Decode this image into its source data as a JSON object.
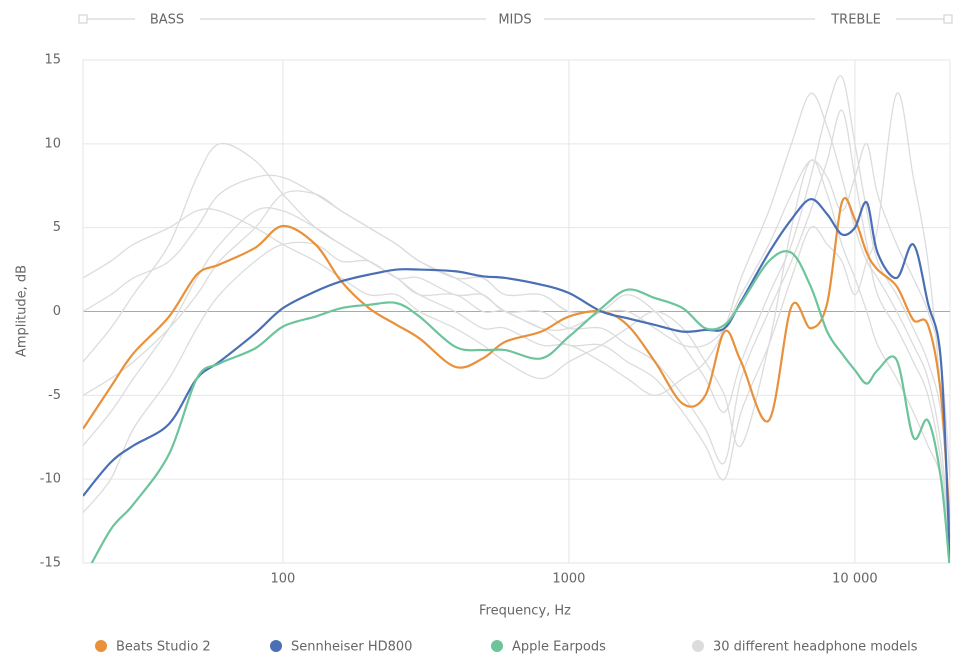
{
  "chart_data": {
    "type": "line",
    "bands": [
      "BASS",
      "MIDS",
      "TREBLE"
    ],
    "xlabel": "Frequency, Hz",
    "ylabel": "Amplitude, dB",
    "xscale": "log",
    "grid": true,
    "xlim": [
      20,
      21500
    ],
    "xticks": [
      100,
      1000,
      {
        "value": 10000,
        "label": "10 000"
      }
    ],
    "ylim": [
      -15,
      15
    ],
    "yticks": [
      -15,
      -10,
      -5,
      0,
      5,
      10,
      15
    ],
    "x": [
      20,
      25,
      30,
      40,
      50,
      60,
      80,
      100,
      130,
      160,
      200,
      250,
      300,
      400,
      500,
      600,
      800,
      1000,
      1300,
      1600,
      2000,
      2500,
      3000,
      3500,
      4000,
      5000,
      6000,
      7000,
      8000,
      9000,
      10000,
      11000,
      12000,
      14000,
      16000,
      18000,
      20000,
      21500
    ],
    "background": {
      "name": "30 different headphone models",
      "color": "#dcdcdc",
      "lines": [
        [
          -3,
          -1,
          1,
          4,
          8,
          10,
          9,
          7,
          5,
          4,
          3,
          2,
          1,
          0,
          -1,
          -1,
          -2,
          -2,
          -3,
          -4,
          -5,
          -4,
          -3,
          -1,
          2,
          6,
          10,
          13,
          11,
          8,
          5,
          3,
          2,
          0,
          -2,
          -4,
          -8,
          -14
        ],
        [
          -8,
          -6,
          -4,
          -1,
          2,
          4,
          6,
          6,
          5,
          4,
          3,
          2,
          1,
          1,
          0,
          0,
          -1,
          -1,
          0,
          1,
          0,
          -2,
          -4,
          -6,
          -3,
          1,
          4,
          8,
          12,
          14,
          10,
          6,
          3,
          1,
          -1,
          -3,
          -6,
          -12
        ],
        [
          2,
          3,
          4,
          5,
          6,
          6,
          5,
          4,
          3,
          2,
          1,
          1,
          0,
          -1,
          -2,
          -3,
          -4,
          -3,
          -2,
          -1,
          0,
          -1,
          -3,
          -5,
          -8,
          -2,
          5,
          9,
          7,
          4,
          2,
          0,
          -2,
          -4,
          -6,
          -8,
          -10,
          -15
        ],
        [
          -12,
          -10,
          -7,
          -4,
          -1,
          1,
          3,
          4,
          4,
          3,
          3,
          2,
          2,
          1,
          1,
          0,
          0,
          -1,
          -1,
          -2,
          -3,
          -5,
          -7,
          -9,
          -4,
          0,
          3,
          6,
          9,
          12,
          8,
          4,
          1,
          -1,
          -3,
          -5,
          -9,
          -14
        ],
        [
          -5,
          -4,
          -3,
          -1,
          1,
          3,
          5,
          7,
          7,
          6,
          5,
          4,
          3,
          2,
          2,
          1,
          1,
          0,
          0,
          0,
          -1,
          -2,
          -2,
          -1,
          1,
          4,
          7,
          9,
          8,
          6,
          8,
          10,
          7,
          4,
          2,
          0,
          -3,
          -10
        ],
        [
          0,
          1,
          2,
          3,
          5,
          7,
          8,
          8,
          7,
          6,
          5,
          4,
          3,
          2,
          1,
          0,
          -1,
          -2,
          -2,
          -3,
          -4,
          -6,
          -8,
          -10,
          -6,
          -2,
          2,
          5,
          4,
          3,
          1,
          3,
          5,
          13,
          8,
          3,
          -5,
          -13
        ]
      ]
    },
    "series": [
      {
        "name": "Beats Studio 2",
        "color": "#e8913a",
        "values": [
          -7,
          -4.5,
          -2.5,
          -0.3,
          2.2,
          2.8,
          3.8,
          5.1,
          4,
          1.8,
          0.2,
          -0.8,
          -1.6,
          -3.3,
          -2.8,
          -1.8,
          -1.2,
          -0.3,
          0,
          -0.8,
          -3,
          -5.5,
          -5,
          -1.2,
          -3,
          -6.5,
          0.3,
          -1,
          0.5,
          6.5,
          5.5,
          3.5,
          2.5,
          1.5,
          -0.5,
          -0.8,
          -5,
          -13
        ]
      },
      {
        "name": "Sennheiser HD800",
        "color": "#4a6fb5",
        "values": [
          -11,
          -9,
          -8,
          -6.7,
          -4,
          -3,
          -1.3,
          0.2,
          1.2,
          1.8,
          2.2,
          2.5,
          2.5,
          2.4,
          2.1,
          2,
          1.6,
          1.1,
          0,
          -0.4,
          -0.8,
          -1.2,
          -1.1,
          -1,
          0.6,
          3.5,
          5.5,
          6.7,
          5.8,
          4.6,
          5,
          6.5,
          3.5,
          2,
          4,
          0.5,
          -3,
          -15
        ]
      },
      {
        "name": "Apple Earpods",
        "color": "#6cc49b",
        "values": [
          -16,
          -13,
          -11.5,
          -8.5,
          -4,
          -3.1,
          -2.2,
          -0.9,
          -0.3,
          0.2,
          0.4,
          0.5,
          -0.3,
          -2.1,
          -2.3,
          -2.3,
          -2.8,
          -1.5,
          0.2,
          1.3,
          0.8,
          0.2,
          -1,
          -0.8,
          0.5,
          3,
          3.5,
          1.5,
          -1.2,
          -2.5,
          -3.5,
          -4.3,
          -3.5,
          -2.9,
          -7.5,
          -6.5,
          -10,
          -15.5
        ]
      }
    ]
  }
}
